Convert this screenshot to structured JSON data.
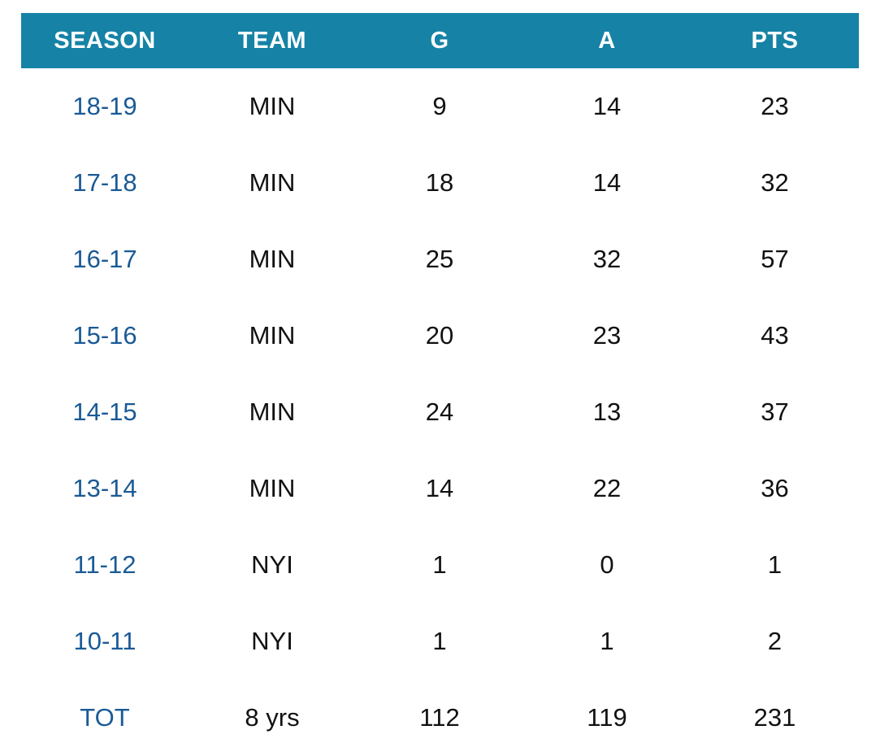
{
  "colors": {
    "header_bg": "#1683a6",
    "header_text": "#ffffff",
    "season_link": "#1a5a96",
    "body_text": "#111111",
    "background": "#ffffff"
  },
  "table": {
    "headers": [
      "SEASON",
      "TEAM",
      "G",
      "A",
      "PTS"
    ],
    "rows": [
      {
        "season": "18-19",
        "team": "MIN",
        "g": "9",
        "a": "14",
        "pts": "23"
      },
      {
        "season": "17-18",
        "team": "MIN",
        "g": "18",
        "a": "14",
        "pts": "32"
      },
      {
        "season": "16-17",
        "team": "MIN",
        "g": "25",
        "a": "32",
        "pts": "57"
      },
      {
        "season": "15-16",
        "team": "MIN",
        "g": "20",
        "a": "23",
        "pts": "43"
      },
      {
        "season": "14-15",
        "team": "MIN",
        "g": "24",
        "a": "13",
        "pts": "37"
      },
      {
        "season": "13-14",
        "team": "MIN",
        "g": "14",
        "a": "22",
        "pts": "36"
      },
      {
        "season": "11-12",
        "team": "NYI",
        "g": "1",
        "a": "0",
        "pts": "1"
      },
      {
        "season": "10-11",
        "team": "NYI",
        "g": "1",
        "a": "1",
        "pts": "2"
      }
    ],
    "total": {
      "season": "TOT",
      "team": "8 yrs",
      "g": "112",
      "a": "119",
      "pts": "231"
    }
  }
}
